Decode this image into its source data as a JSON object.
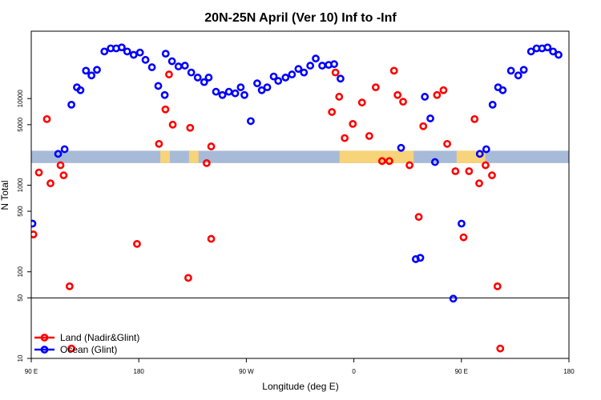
{
  "chart_data": {
    "type": "scatter",
    "title": "20N-25N April (Ver 10)   Inf to -Inf",
    "xlabel": "Longitude (deg E)",
    "ylabel": "N Total",
    "x_scale": "longitude_deg_east",
    "xlim": [
      90,
      540
    ],
    "x_ticks": [
      {
        "value": 90,
        "label": "90 E"
      },
      {
        "value": 180,
        "label": "180"
      },
      {
        "value": 270,
        "label": "90 W"
      },
      {
        "value": 360,
        "label": "0"
      },
      {
        "value": 450,
        "label": "90 E"
      },
      {
        "value": 540,
        "label": "180"
      }
    ],
    "y_scale": "log",
    "ylim": [
      10,
      60000
    ],
    "y_ticks": [
      {
        "value": 10,
        "label": "10"
      },
      {
        "value": 50,
        "label": "50"
      },
      {
        "value": 100,
        "label": "100"
      },
      {
        "value": 500,
        "label": "500"
      },
      {
        "value": 1000,
        "label": "1000"
      },
      {
        "value": 5000,
        "label": "5000"
      },
      {
        "value": 10000,
        "label": "10000"
      }
    ],
    "reference_line": {
      "y": 50
    },
    "band": {
      "y_low": 1800,
      "y_high": 2500,
      "base_color": "#a7bbd8",
      "highlight_color": "#f7d37a"
    },
    "legend": {
      "position": "bottom-left"
    },
    "series": [
      {
        "name": "Land (Nadir&Glint)",
        "color": "#ff0000",
        "points": [
          [
            91.8,
            270
          ],
          [
            96.4,
            1400
          ],
          [
            103.1,
            5800
          ],
          [
            106.1,
            1050
          ],
          [
            114.5,
            1700
          ],
          [
            117.1,
            1300
          ],
          [
            122.1,
            68
          ],
          [
            123.6,
            13
          ],
          [
            178.5,
            210
          ],
          [
            196.9,
            3000
          ],
          [
            202.3,
            7500
          ],
          [
            205.3,
            19000
          ],
          [
            208.4,
            5000
          ],
          [
            221.4,
            85
          ],
          [
            223.0,
            4600
          ],
          [
            236.8,
            1800
          ],
          [
            240.6,
            2800
          ],
          [
            240.6,
            240
          ],
          [
            341.6,
            7000
          ],
          [
            344.6,
            20000
          ],
          [
            347.7,
            10500
          ],
          [
            352.3,
            3500
          ],
          [
            359.1,
            5100
          ],
          [
            366.8,
            9000
          ],
          [
            372.9,
            3700
          ],
          [
            378.3,
            13500
          ],
          [
            383.6,
            1900
          ],
          [
            389.7,
            1900
          ],
          [
            393.6,
            21000
          ],
          [
            396.6,
            11000
          ],
          [
            401.2,
            9200
          ],
          [
            406.6,
            1700
          ],
          [
            414.3,
            430
          ],
          [
            418.1,
            4800
          ],
          [
            429.6,
            11000
          ],
          [
            435.0,
            12500
          ],
          [
            438.1,
            3000
          ],
          [
            445.0,
            1450
          ],
          [
            451.8,
            250
          ],
          [
            456.4,
            1450
          ],
          [
            461.0,
            5800
          ],
          [
            464.9,
            1050
          ],
          [
            470.2,
            1700
          ],
          [
            475.6,
            1300
          ],
          [
            480.2,
            68
          ],
          [
            482.5,
            13
          ]
        ]
      },
      {
        "name": "Ocean (Glint)",
        "color": "#0000ff",
        "points": [
          [
            91.0,
            360
          ],
          [
            112.5,
            2300
          ],
          [
            117.9,
            2600
          ],
          [
            123.6,
            8500
          ],
          [
            128.2,
            13500
          ],
          [
            131.2,
            12500
          ],
          [
            135.8,
            21000
          ],
          [
            140.4,
            18500
          ],
          [
            145.0,
            21500
          ],
          [
            151.2,
            35000
          ],
          [
            156.5,
            38000
          ],
          [
            161.1,
            38000
          ],
          [
            165.7,
            39000
          ],
          [
            170.3,
            35000
          ],
          [
            175.7,
            32000
          ],
          [
            181.0,
            34000
          ],
          [
            185.6,
            28000
          ],
          [
            191.0,
            23000
          ],
          [
            196.3,
            14000
          ],
          [
            201.7,
            11000
          ],
          [
            202.5,
            33000
          ],
          [
            207.8,
            27000
          ],
          [
            213.2,
            23500
          ],
          [
            218.6,
            24000
          ],
          [
            223.9,
            20000
          ],
          [
            229.3,
            17500
          ],
          [
            234.7,
            15500
          ],
          [
            238.5,
            17500
          ],
          [
            244.6,
            12000
          ],
          [
            250.0,
            11000
          ],
          [
            255.4,
            12000
          ],
          [
            260.7,
            11500
          ],
          [
            265.3,
            13500
          ],
          [
            268.4,
            11000
          ],
          [
            273.7,
            5500
          ],
          [
            279.1,
            15000
          ],
          [
            282.9,
            12500
          ],
          [
            287.5,
            13500
          ],
          [
            292.9,
            18000
          ],
          [
            296.7,
            16000
          ],
          [
            302.8,
            17500
          ],
          [
            308.2,
            19000
          ],
          [
            313.6,
            22000
          ],
          [
            318.2,
            20000
          ],
          [
            323.5,
            24000
          ],
          [
            328.1,
            29000
          ],
          [
            333.5,
            24000
          ],
          [
            338.9,
            24500
          ],
          [
            343.5,
            25000
          ],
          [
            348.8,
            17000
          ],
          [
            399.5,
            2700
          ],
          [
            411.8,
            140
          ],
          [
            415.6,
            145
          ],
          [
            419.4,
            10500
          ],
          [
            424.0,
            5900
          ],
          [
            427.9,
            1850
          ],
          [
            443.2,
            49
          ],
          [
            450.1,
            360
          ],
          [
            465.4,
            2300
          ],
          [
            470.8,
            2600
          ],
          [
            476.1,
            8500
          ],
          [
            480.7,
            13500
          ],
          [
            484.6,
            12500
          ],
          [
            491.5,
            21000
          ],
          [
            497.6,
            18500
          ],
          [
            502.2,
            21500
          ],
          [
            508.3,
            35000
          ],
          [
            512.9,
            38000
          ],
          [
            517.5,
            38000
          ],
          [
            522.1,
            39000
          ],
          [
            526.7,
            35000
          ],
          [
            531.3,
            32000
          ]
        ]
      }
    ]
  }
}
